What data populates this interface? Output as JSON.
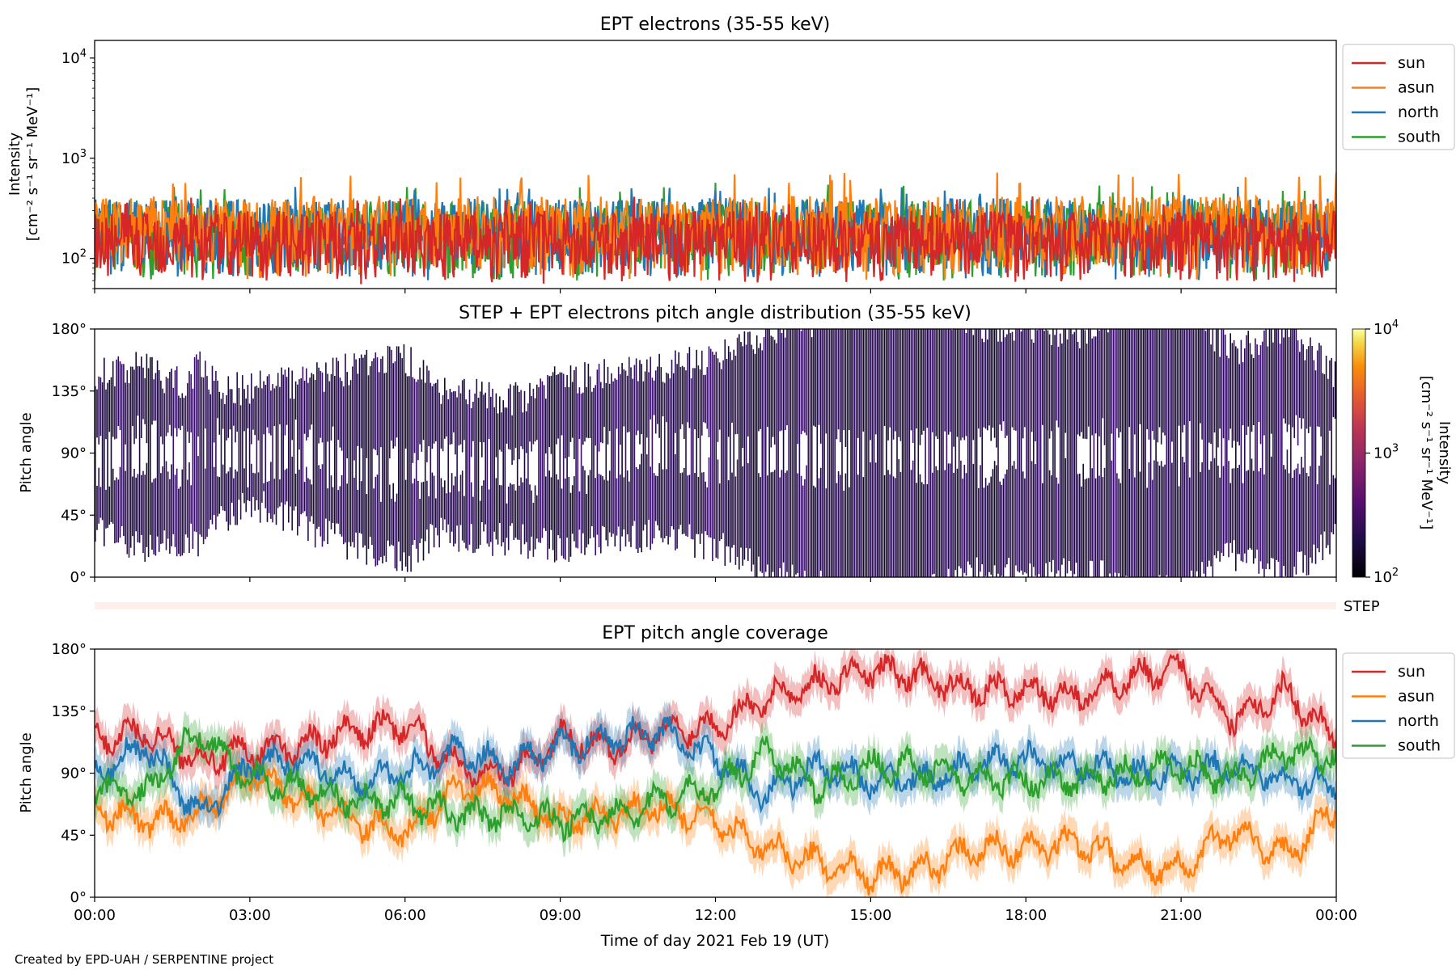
{
  "figure": {
    "credit": "Created by EPD-UAH / SERPENTINE project",
    "xlabel": "Time of day 2021 Feb 19 (UT)",
    "xticks": [
      "00:00",
      "03:00",
      "06:00",
      "09:00",
      "12:00",
      "15:00",
      "18:00",
      "21:00",
      "00:00"
    ],
    "colors": {
      "sun": "#d62728",
      "asun": "#ff7f0e",
      "north": "#1f77b4",
      "south": "#2ca02c",
      "step_bar": "#fdf0eb"
    }
  },
  "chart_data": [
    {
      "type": "line",
      "title": "EPT electrons (35-55 keV)",
      "ylabel": [
        "Intensity",
        "[cm⁻² s⁻¹ sr⁻¹ MeV⁻¹]"
      ],
      "yscale": "log",
      "ylim": [
        50,
        15000
      ],
      "yticks": [
        {
          "base": "10",
          "exp": "2",
          "value": 100
        },
        {
          "base": "10",
          "exp": "3",
          "value": 1000
        },
        {
          "base": "10",
          "exp": "4",
          "value": 10000
        }
      ],
      "xlim_hours": [
        0,
        24
      ],
      "legend": {
        "position": "outside-right",
        "entries": [
          "sun",
          "asun",
          "north",
          "south"
        ]
      },
      "series": [
        {
          "name": "south",
          "color": "#2ca02c",
          "typical": [
            60,
            380
          ],
          "peak": 570
        },
        {
          "name": "north",
          "color": "#1f77b4",
          "typical": [
            60,
            400
          ],
          "peak": 550
        },
        {
          "name": "asun",
          "color": "#ff7f0e",
          "typical": [
            60,
            420
          ],
          "peak": 720
        },
        {
          "name": "sun",
          "color": "#d62728",
          "typical": [
            55,
            300
          ],
          "peak": 420
        }
      ]
    },
    {
      "type": "heatmap",
      "title": "STEP + EPT electrons pitch angle distribution (35-55 keV)",
      "ylabel": "Pitch angle",
      "ylim": [
        0,
        180
      ],
      "yticks": [
        "0°",
        "45°",
        "90°",
        "135°",
        "180°"
      ],
      "ytick_values": [
        0,
        45,
        90,
        135,
        180
      ],
      "colorbar": {
        "label": [
          "Intensity",
          "[cm⁻² s⁻¹ sr⁻¹ MeV⁻¹]"
        ],
        "scale": "log",
        "range": [
          100,
          10000
        ],
        "ticks": [
          {
            "base": "10",
            "exp": "2",
            "value": 100
          },
          {
            "base": "10",
            "exp": "3",
            "value": 1000
          },
          {
            "base": "10",
            "exp": "4",
            "value": 10000
          }
        ],
        "colormap": "inferno"
      },
      "step_label": "STEP"
    },
    {
      "type": "line",
      "title": "EPT pitch angle coverage",
      "ylabel": "Pitch angle",
      "ylim": [
        0,
        180
      ],
      "yticks": [
        "0°",
        "45°",
        "90°",
        "135°",
        "180°"
      ],
      "ytick_values": [
        0,
        45,
        90,
        135,
        180
      ],
      "legend": {
        "position": "outside-right",
        "entries": [
          "sun",
          "asun",
          "north",
          "south"
        ]
      },
      "x_hours": [
        0,
        1,
        2,
        3,
        4,
        5,
        6,
        7,
        8,
        9,
        10,
        11,
        12,
        13,
        14,
        15,
        16,
        17,
        18,
        19,
        20,
        21,
        22,
        23,
        24
      ],
      "series": [
        {
          "name": "sun",
          "color": "#d62728",
          "values": [
            115,
            120,
            100,
            105,
            110,
            120,
            125,
            95,
            90,
            115,
            110,
            120,
            125,
            145,
            155,
            165,
            160,
            150,
            150,
            145,
            160,
            165,
            130,
            150,
            115
          ]
        },
        {
          "name": "asun",
          "color": "#ff7f0e",
          "values": [
            65,
            55,
            60,
            90,
            70,
            55,
            45,
            80,
            75,
            55,
            60,
            65,
            55,
            35,
            25,
            15,
            20,
            35,
            35,
            40,
            25,
            20,
            50,
            30,
            65
          ]
        },
        {
          "name": "north",
          "color": "#1f77b4",
          "values": [
            90,
            110,
            60,
            95,
            100,
            85,
            90,
            105,
            95,
            110,
            115,
            120,
            100,
            75,
            95,
            85,
            85,
            95,
            100,
            95,
            90,
            90,
            95,
            85,
            80
          ]
        },
        {
          "name": "south",
          "color": "#2ca02c",
          "values": [
            80,
            75,
            120,
            85,
            80,
            70,
            70,
            60,
            60,
            55,
            60,
            70,
            80,
            105,
            80,
            95,
            95,
            85,
            85,
            85,
            90,
            95,
            85,
            105,
            100
          ]
        }
      ]
    }
  ]
}
